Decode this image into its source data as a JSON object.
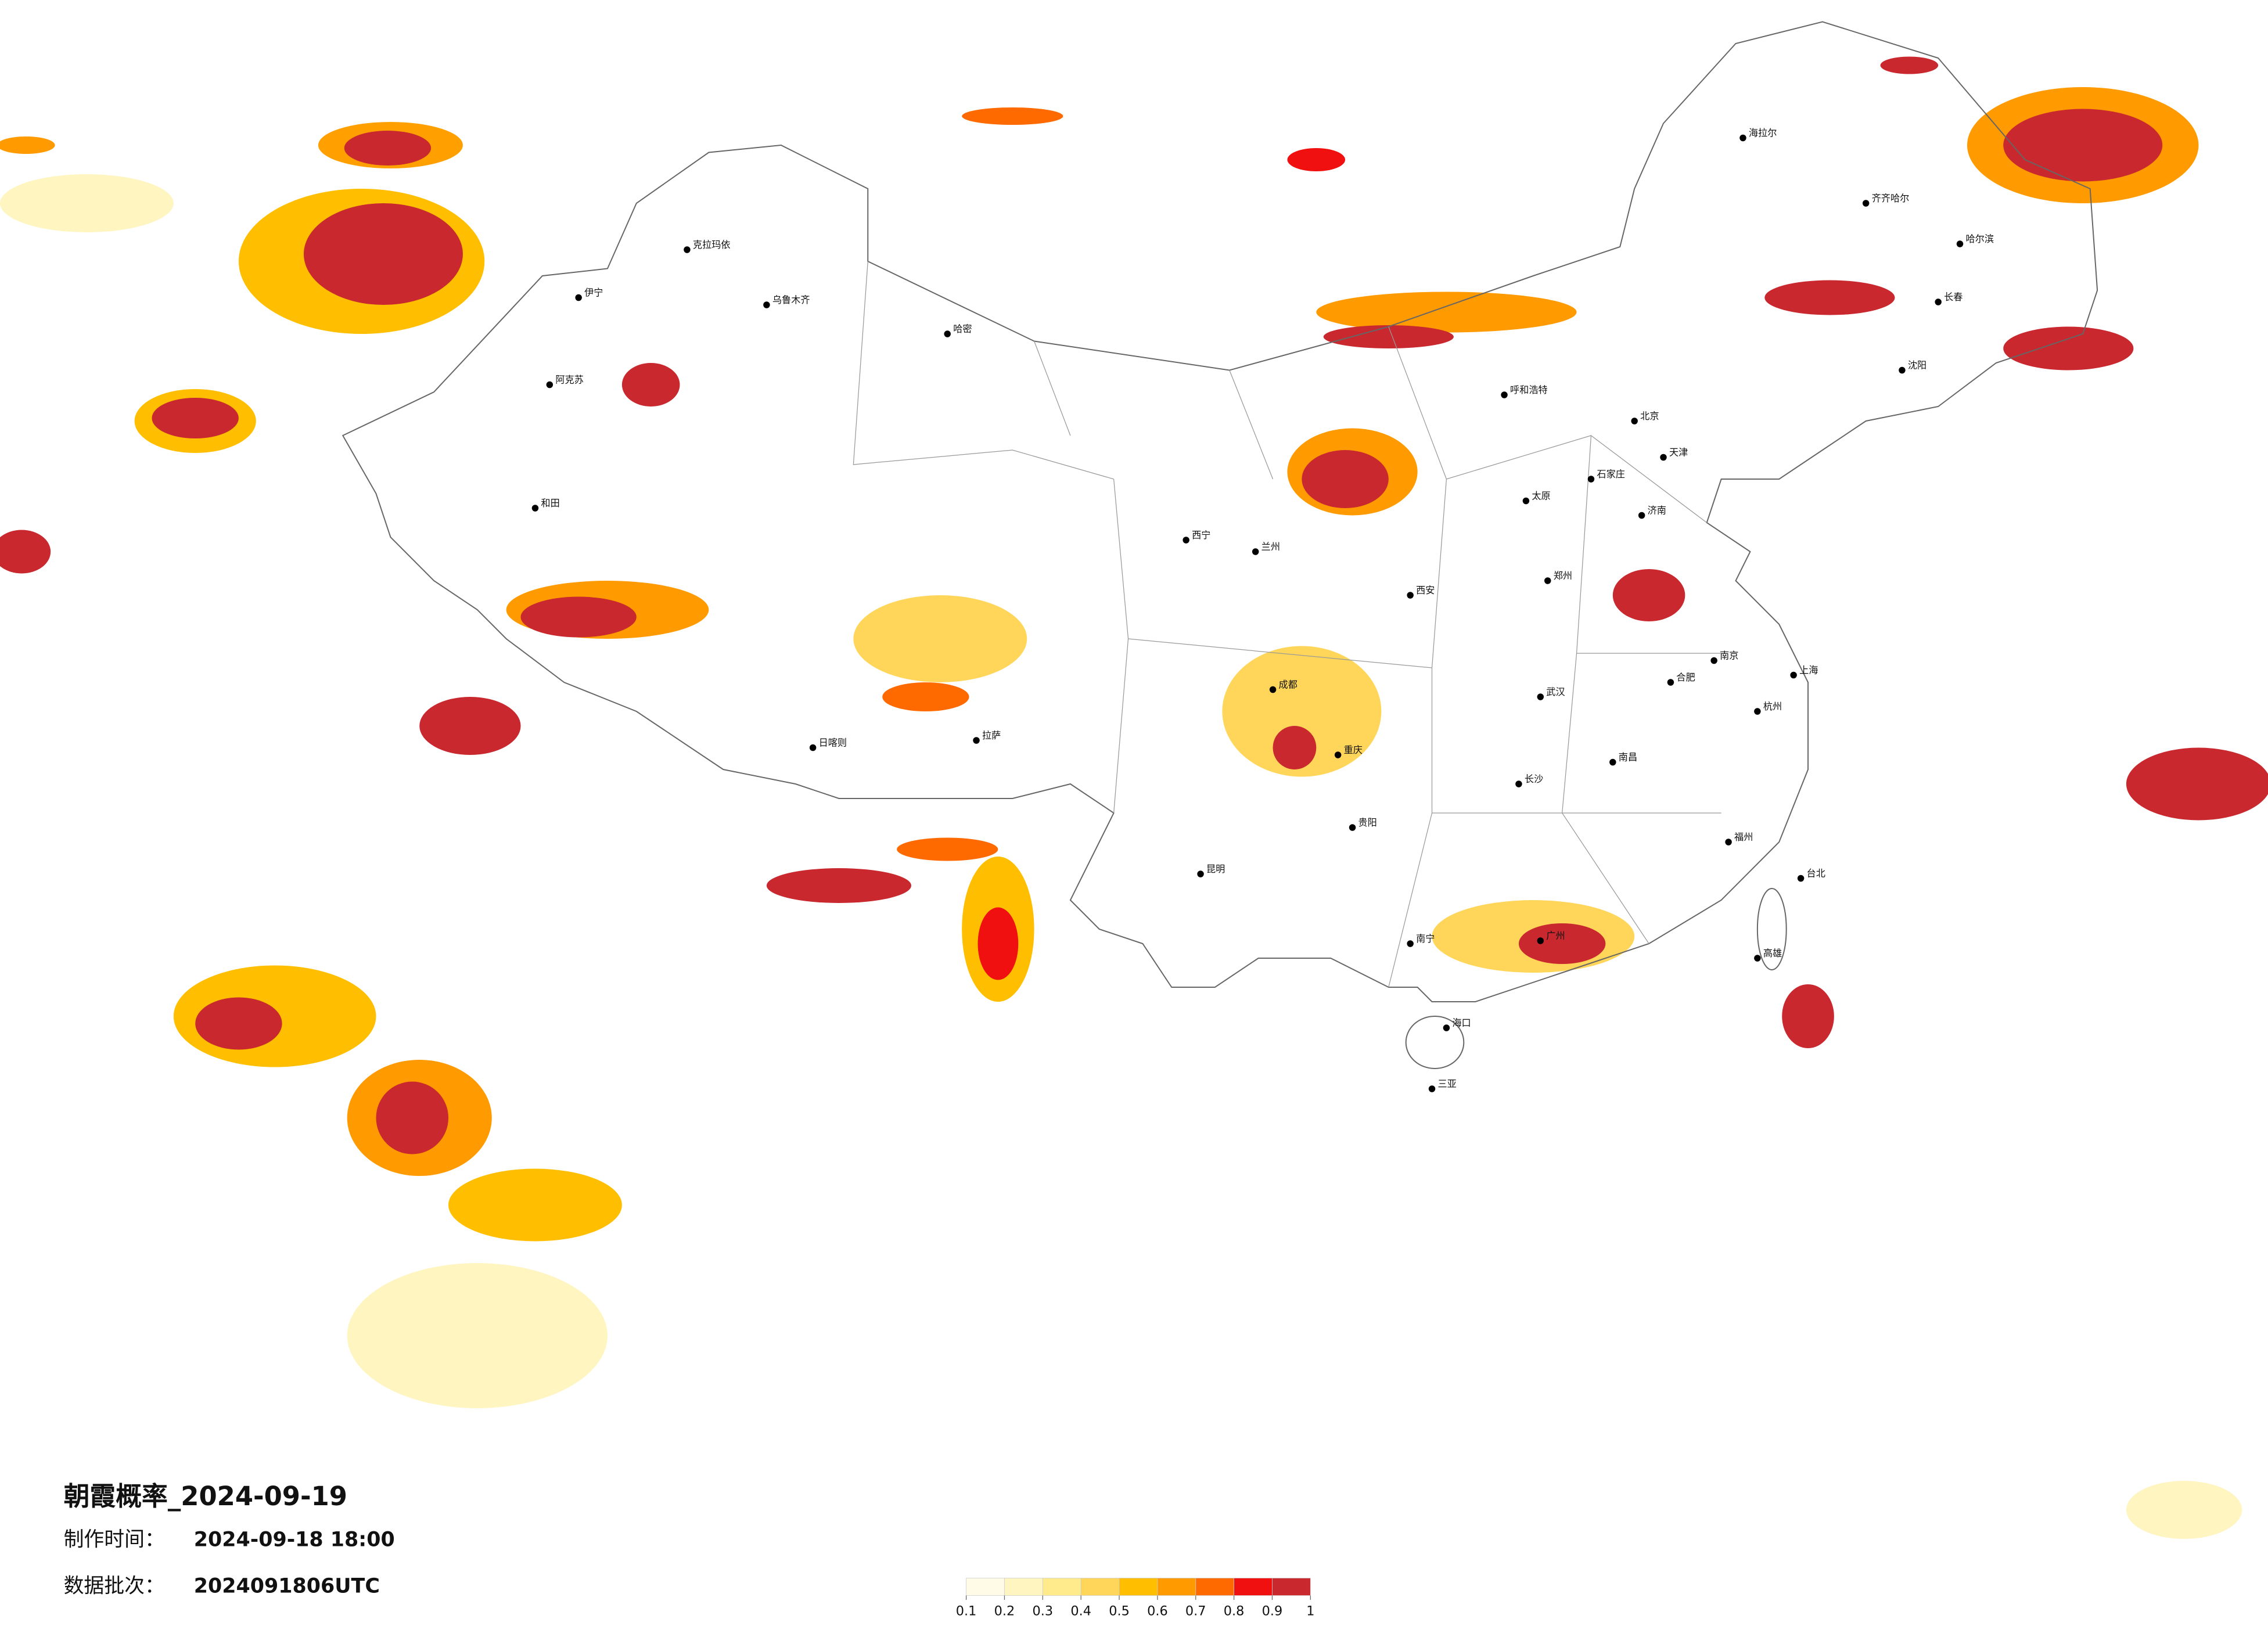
{
  "title": "朝霞概率_2024-09-19",
  "production_time": {
    "label": "制作时间：",
    "value": "2024-09-18 18:00"
  },
  "batch": {
    "label": "数据批次：",
    "value": "2024091806UTC"
  },
  "legend": {
    "colors": [
      "#fffbe6",
      "#fff5c0",
      "#ffeb8c",
      "#ffd65a",
      "#ffbf00",
      "#ff9a00",
      "#ff6a00",
      "#f01010",
      "#c8282e"
    ],
    "ticks": [
      0.1,
      0.2,
      0.3,
      0.4,
      0.5,
      0.6,
      0.7,
      0.8,
      0.9,
      1
    ]
  },
  "cities": [
    "克拉玛依",
    "乌鲁木齐",
    "伊宁",
    "阿克苏",
    "和田",
    "哈密",
    "海拉尔",
    "齐齐哈尔",
    "哈尔滨",
    "长春",
    "沈阳",
    "北京",
    "天津",
    "石家庄",
    "太原",
    "呼和浩特",
    "西宁",
    "兰州",
    "西安",
    "郑州",
    "济南",
    "南京",
    "上海",
    "杭州",
    "合肥",
    "武汉",
    "长沙",
    "南昌",
    "福州",
    "广州",
    "南宁",
    "昆明",
    "贵阳",
    "成都",
    "重庆",
    "拉萨",
    "日喀则",
    "海口",
    "三亚",
    "台北",
    "高雄"
  ]
}
